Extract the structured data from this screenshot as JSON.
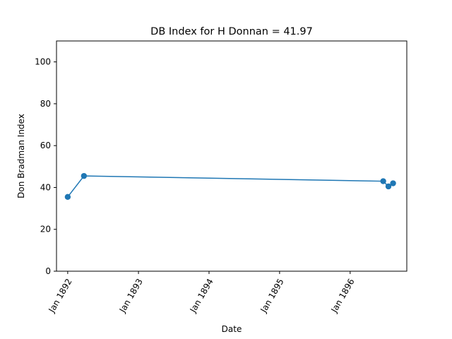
{
  "chart_data": {
    "type": "line",
    "title": "DB Index for H Donnan = 41.97",
    "xlabel": "Date",
    "ylabel": "Don Bradman Index",
    "ylim": [
      0,
      110
    ],
    "xlim": [
      "1891-11-04",
      "1896-10-20"
    ],
    "y_ticks": [
      0,
      20,
      40,
      60,
      80,
      100
    ],
    "x_ticks": [
      {
        "date": "1892-01-01",
        "label": "Jan 1892"
      },
      {
        "date": "1893-01-01",
        "label": "Jan 1893"
      },
      {
        "date": "1894-01-01",
        "label": "Jan 1894"
      },
      {
        "date": "1895-01-01",
        "label": "Jan 1895"
      },
      {
        "date": "1896-01-01",
        "label": "Jan 1896"
      }
    ],
    "series": [
      {
        "color": "#1f77b4",
        "x": [
          "1892-01-01",
          "1892-03-25",
          "1896-06-20",
          "1896-07-17",
          "1896-08-10"
        ],
        "y": [
          35.5,
          45.5,
          43.0,
          40.5,
          42.0
        ]
      }
    ],
    "grid": false,
    "legend": "none"
  }
}
